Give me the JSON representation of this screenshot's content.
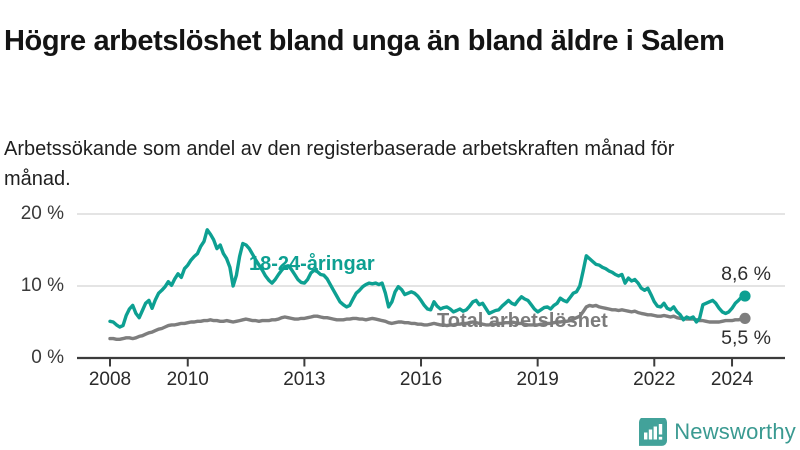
{
  "header": {
    "title": "Högre arbetslöshet bland unga än bland äldre i Salem",
    "subtitle": "Arbetssökande som andel av den registerbaserade arbetskraften månad för månad."
  },
  "chart_data": {
    "type": "line",
    "title": "Högre arbetslöshet bland unga än bland äldre i Salem",
    "subtitle": "Arbetssökande som andel av den registerbaserade arbetskraften månad för månad.",
    "unit": "%",
    "grid": "horizontal",
    "legend_position": "inline-annotations",
    "ylim": [
      0,
      20
    ],
    "x_range": {
      "start": "2008-01",
      "end": "2024-05",
      "frequency": "monthly"
    },
    "y_ticks": [
      {
        "value": 0,
        "label": "0 %"
      },
      {
        "value": 10,
        "label": "10 %"
      },
      {
        "value": 20,
        "label": "20 %"
      }
    ],
    "x_ticks": [
      {
        "label": "2008",
        "month_index": 0
      },
      {
        "label": "2010",
        "month_index": 24
      },
      {
        "label": "2013",
        "month_index": 60
      },
      {
        "label": "2016",
        "month_index": 96
      },
      {
        "label": "2019",
        "month_index": 132
      },
      {
        "label": "2022",
        "month_index": 168
      },
      {
        "label": "2024",
        "month_index": 192
      }
    ],
    "series": [
      {
        "name": "18-24-åringar",
        "color": "#0da092",
        "end_label": "8,6 %",
        "end_value": 8.6,
        "values": [
          5.1,
          5.0,
          4.6,
          4.3,
          4.5,
          5.9,
          6.8,
          7.3,
          6.2,
          5.6,
          6.6,
          7.6,
          8.0,
          6.9,
          8.1,
          9.0,
          9.4,
          9.9,
          10.6,
          10.1,
          11.0,
          11.7,
          11.2,
          12.4,
          12.9,
          13.6,
          14.1,
          14.5,
          15.5,
          16.2,
          17.8,
          17.2,
          16.4,
          15.2,
          15.7,
          14.5,
          13.8,
          12.6,
          10.0,
          11.5,
          14.1,
          15.9,
          15.7,
          15.2,
          14.4,
          13.6,
          12.9,
          12.2,
          11.4,
          10.8,
          10.4,
          10.9,
          11.6,
          12.2,
          12.7,
          12.8,
          12.3,
          11.6,
          10.9,
          10.5,
          10.4,
          10.9,
          11.8,
          12.2,
          12.0,
          11.6,
          11.5,
          11.0,
          10.2,
          9.4,
          8.6,
          7.8,
          7.4,
          7.1,
          7.3,
          8.2,
          9.0,
          9.4,
          9.9,
          10.2,
          10.4,
          10.3,
          10.4,
          10.2,
          10.4,
          9.0,
          7.1,
          7.8,
          9.2,
          9.9,
          9.5,
          8.8,
          9.0,
          9.2,
          9.0,
          8.6,
          8.0,
          7.3,
          6.8,
          6.7,
          7.8,
          7.2,
          6.8,
          7.0,
          7.1,
          6.8,
          6.4,
          6.6,
          6.8,
          6.5,
          6.7,
          7.2,
          7.8,
          8.0,
          7.4,
          7.6,
          6.9,
          6.2,
          6.4,
          6.6,
          6.7,
          7.2,
          7.6,
          8.0,
          7.6,
          7.4,
          8.0,
          8.5,
          8.2,
          8.0,
          7.4,
          6.8,
          6.4,
          6.7,
          7.0,
          7.1,
          6.8,
          7.3,
          7.6,
          8.3,
          8.0,
          7.8,
          8.4,
          9.0,
          9.2,
          10.0,
          12.0,
          14.2,
          13.8,
          13.4,
          13.0,
          12.9,
          12.6,
          12.4,
          12.1,
          11.9,
          11.6,
          11.4,
          11.6,
          10.4,
          11.1,
          10.7,
          10.9,
          10.4,
          9.7,
          9.4,
          9.7,
          8.8,
          7.8,
          7.2,
          7.1,
          7.6,
          6.9,
          6.7,
          7.1,
          6.4,
          6.0,
          5.3,
          5.7,
          5.5,
          5.7,
          5.0,
          5.5,
          7.4,
          7.6,
          7.8,
          8.0,
          7.6,
          6.9,
          6.4,
          6.2,
          6.4,
          6.9,
          7.6,
          8.0,
          8.5,
          8.6
        ]
      },
      {
        "name": "Total arbetslöshet",
        "color": "#7e7e7e",
        "end_label": "5,5 %",
        "end_value": 5.5,
        "values": [
          2.7,
          2.7,
          2.6,
          2.6,
          2.7,
          2.8,
          2.8,
          2.7,
          2.8,
          3.0,
          3.1,
          3.3,
          3.5,
          3.6,
          3.8,
          4.0,
          4.1,
          4.3,
          4.5,
          4.6,
          4.6,
          4.7,
          4.8,
          4.8,
          4.9,
          5.0,
          5.0,
          5.1,
          5.1,
          5.2,
          5.2,
          5.3,
          5.2,
          5.2,
          5.1,
          5.1,
          5.2,
          5.1,
          5.0,
          5.1,
          5.2,
          5.3,
          5.4,
          5.3,
          5.2,
          5.2,
          5.1,
          5.2,
          5.2,
          5.2,
          5.3,
          5.3,
          5.4,
          5.6,
          5.7,
          5.6,
          5.5,
          5.4,
          5.4,
          5.5,
          5.5,
          5.6,
          5.7,
          5.8,
          5.8,
          5.7,
          5.6,
          5.6,
          5.5,
          5.4,
          5.3,
          5.3,
          5.3,
          5.4,
          5.4,
          5.5,
          5.5,
          5.4,
          5.4,
          5.3,
          5.4,
          5.5,
          5.4,
          5.3,
          5.2,
          5.1,
          4.9,
          4.8,
          4.9,
          5.0,
          5.0,
          4.9,
          4.9,
          4.8,
          4.8,
          4.7,
          4.7,
          4.6,
          4.6,
          4.7,
          4.8,
          4.7,
          4.6,
          4.6,
          4.5,
          4.6,
          4.6,
          4.7,
          4.7,
          4.8,
          4.8,
          4.9,
          5.0,
          4.9,
          4.8,
          4.7,
          4.6,
          4.6,
          4.7,
          4.7,
          4.8,
          4.8,
          4.9,
          4.9,
          5.0,
          4.9,
          4.8,
          4.8,
          4.7,
          4.6,
          4.6,
          4.6,
          4.6,
          4.7,
          4.7,
          4.8,
          4.8,
          4.9,
          5.0,
          5.0,
          5.1,
          5.1,
          5.2,
          5.4,
          5.6,
          5.8,
          6.4,
          7.1,
          7.3,
          7.2,
          7.3,
          7.1,
          7.0,
          6.9,
          6.8,
          6.7,
          6.7,
          6.6,
          6.7,
          6.6,
          6.5,
          6.4,
          6.5,
          6.3,
          6.2,
          6.1,
          6.0,
          6.0,
          5.9,
          5.8,
          5.8,
          5.9,
          5.8,
          5.7,
          5.8,
          5.6,
          5.5,
          5.5,
          5.4,
          5.4,
          5.4,
          5.3,
          5.2,
          5.2,
          5.1,
          5.0,
          5.0,
          5.0,
          5.0,
          5.1,
          5.2,
          5.2,
          5.2,
          5.3,
          5.3,
          5.4,
          5.5
        ]
      }
    ]
  },
  "colors": {
    "accent_teal": "#0da092",
    "line_gray": "#7e7e7e",
    "gridline": "#dcdcdc",
    "axis": "#3c3c3c",
    "text_dark": "#141414",
    "brand_teal": "#3a9a91"
  },
  "footer": {
    "brand": "Newsworthy",
    "logo_icon": "bar-chart-speech-bubble-icon"
  }
}
